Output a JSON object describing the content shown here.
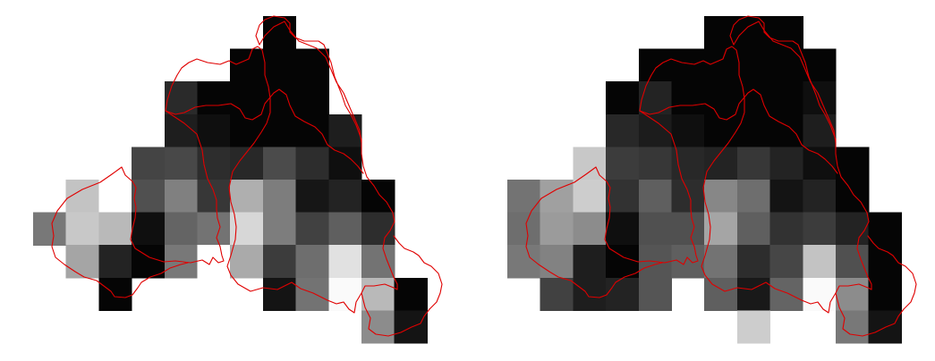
{
  "colors": {
    "background": "#ffffff",
    "boundary": "#e00000"
  },
  "panels": [
    {
      "id": "left",
      "rows": [
        [
          null,
          null,
          null,
          null,
          null,
          null,
          null,
          5,
          null,
          null,
          null,
          null
        ],
        [
          null,
          null,
          null,
          null,
          null,
          null,
          5,
          5,
          5,
          null,
          null,
          null
        ],
        [
          null,
          null,
          null,
          null,
          42,
          5,
          5,
          5,
          5,
          null,
          null,
          null
        ],
        [
          null,
          null,
          null,
          null,
          30,
          15,
          5,
          5,
          5,
          30,
          null,
          null
        ],
        [
          null,
          null,
          null,
          68,
          72,
          45,
          40,
          75,
          45,
          15,
          null,
          null
        ],
        [
          null,
          195,
          255,
          80,
          128,
          55,
          175,
          125,
          22,
          35,
          5,
          null
        ],
        [
          120,
          200,
          185,
          15,
          100,
          115,
          215,
          125,
          65,
          95,
          45,
          null
        ],
        [
          null,
          165,
          35,
          5,
          120,
          255,
          170,
          60,
          110,
          225,
          115,
          null
        ],
        [
          null,
          null,
          5,
          null,
          null,
          null,
          null,
          20,
          115,
          250,
          185,
          5
        ],
        [
          null,
          null,
          null,
          null,
          null,
          null,
          null,
          null,
          null,
          null,
          140,
          20
        ]
      ]
    },
    {
      "id": "right",
      "rows": [
        [
          null,
          null,
          null,
          null,
          null,
          null,
          5,
          5,
          5,
          null,
          null,
          null
        ],
        [
          null,
          null,
          null,
          null,
          5,
          5,
          5,
          5,
          5,
          5,
          null,
          null
        ],
        [
          null,
          null,
          null,
          5,
          35,
          5,
          5,
          5,
          5,
          15,
          null,
          null
        ],
        [
          null,
          null,
          null,
          40,
          28,
          15,
          5,
          5,
          5,
          30,
          null,
          null
        ],
        [
          null,
          null,
          200,
          60,
          55,
          40,
          35,
          55,
          35,
          15,
          5,
          null
        ],
        [
          115,
          160,
          205,
          50,
          95,
          45,
          135,
          110,
          20,
          35,
          5,
          null
        ],
        [
          110,
          155,
          140,
          15,
          80,
          80,
          165,
          95,
          50,
          60,
          35,
          5
        ],
        [
          120,
          130,
          30,
          5,
          85,
          95,
          115,
          45,
          70,
          195,
          80,
          5
        ],
        [
          null,
          65,
          30,
          35,
          85,
          null,
          95,
          25,
          100,
          250,
          140,
          5
        ],
        [
          null,
          null,
          null,
          null,
          null,
          null,
          null,
          205,
          null,
          null,
          120,
          20
        ]
      ]
    }
  ]
}
